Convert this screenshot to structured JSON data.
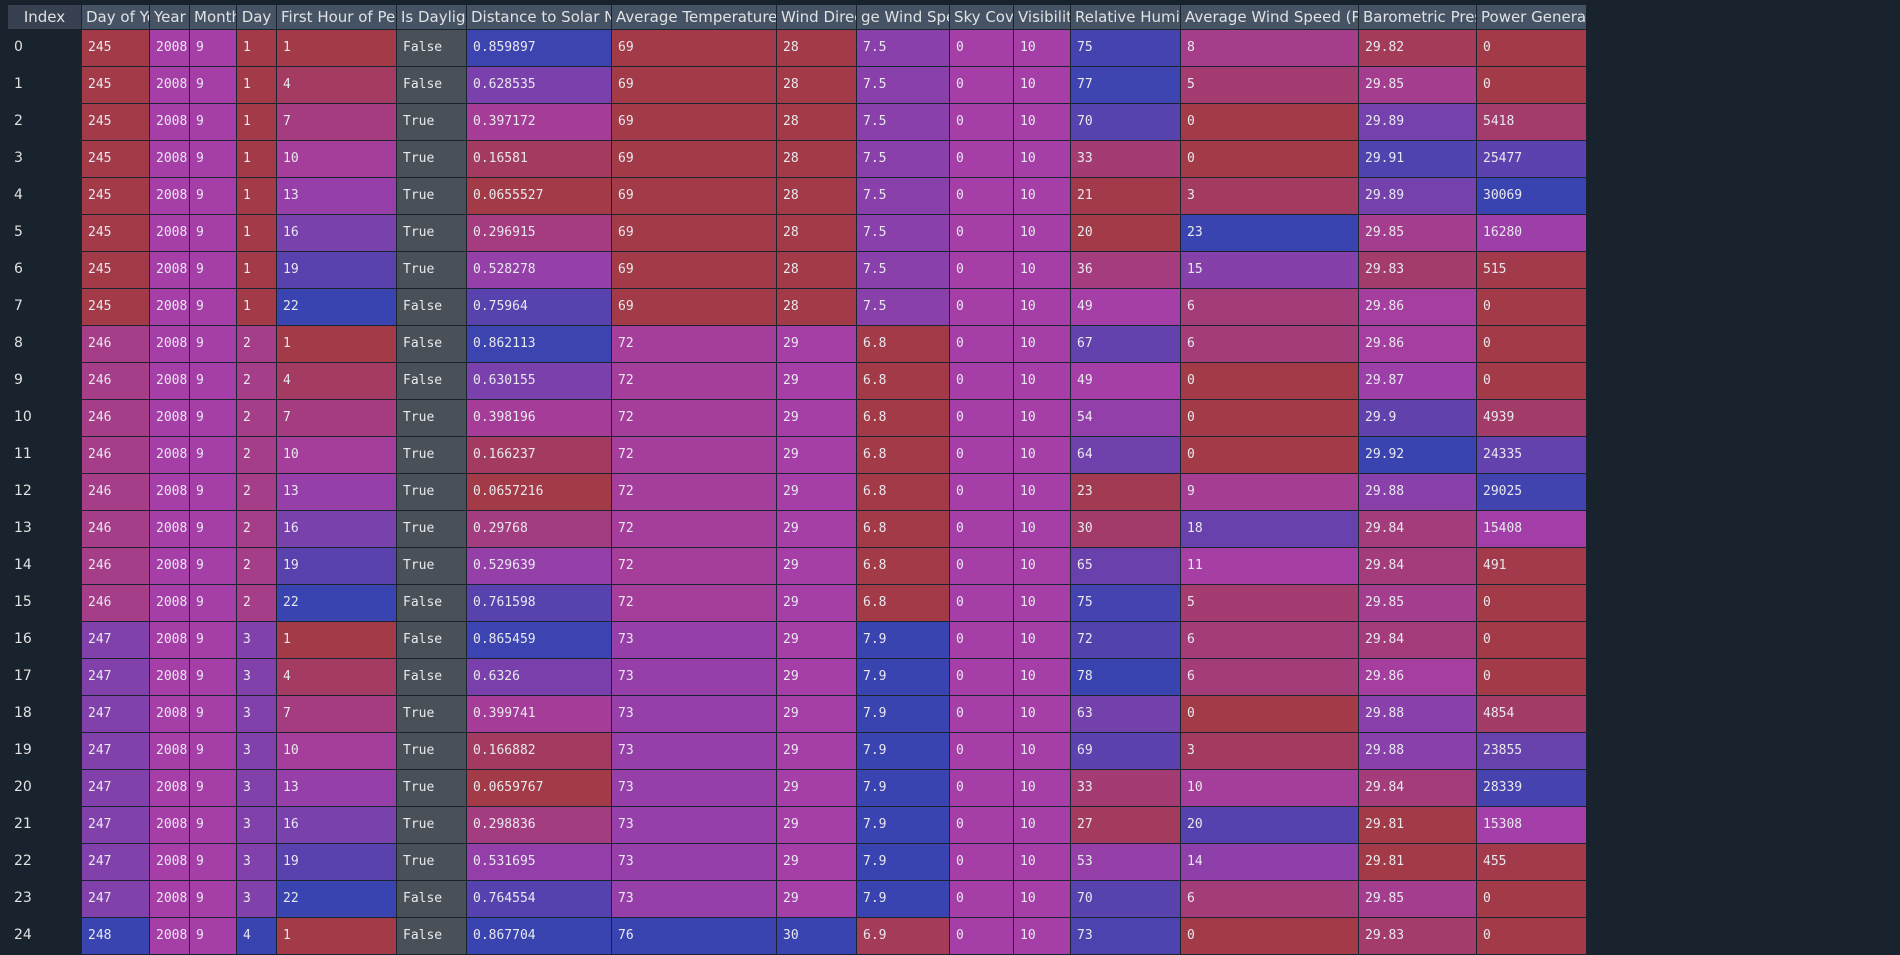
{
  "columns": [
    {
      "label": "Index"
    },
    {
      "label": "Day of Year"
    },
    {
      "label": "Year"
    },
    {
      "label": "Month"
    },
    {
      "label": "Day"
    },
    {
      "label": "First Hour of Period"
    },
    {
      "label": "Is Daylight"
    },
    {
      "label": "Distance to Solar Noon"
    },
    {
      "label": "Average Temperature (Day)"
    },
    {
      "label": "Wind Directi"
    },
    {
      "label": "ge Wind Speed"
    },
    {
      "label": "Sky Cover"
    },
    {
      "label": "Visibility"
    },
    {
      "label": "Relative Humidity"
    },
    {
      "label": "Average Wind Speed (Period)"
    },
    {
      "label": "Barometric Pressure"
    },
    {
      "label": "Power Generated"
    }
  ],
  "rows": [
    [
      "0",
      "245",
      "2008",
      "9",
      "1",
      "1",
      "False",
      "0.859897",
      "69",
      "28",
      "7.5",
      "0",
      "10",
      "75",
      "8",
      "29.82",
      "0"
    ],
    [
      "1",
      "245",
      "2008",
      "9",
      "1",
      "4",
      "False",
      "0.628535",
      "69",
      "28",
      "7.5",
      "0",
      "10",
      "77",
      "5",
      "29.85",
      "0"
    ],
    [
      "2",
      "245",
      "2008",
      "9",
      "1",
      "7",
      "True",
      "0.397172",
      "69",
      "28",
      "7.5",
      "0",
      "10",
      "70",
      "0",
      "29.89",
      "5418"
    ],
    [
      "3",
      "245",
      "2008",
      "9",
      "1",
      "10",
      "True",
      "0.16581",
      "69",
      "28",
      "7.5",
      "0",
      "10",
      "33",
      "0",
      "29.91",
      "25477"
    ],
    [
      "4",
      "245",
      "2008",
      "9",
      "1",
      "13",
      "True",
      "0.0655527",
      "69",
      "28",
      "7.5",
      "0",
      "10",
      "21",
      "3",
      "29.89",
      "30069"
    ],
    [
      "5",
      "245",
      "2008",
      "9",
      "1",
      "16",
      "True",
      "0.296915",
      "69",
      "28",
      "7.5",
      "0",
      "10",
      "20",
      "23",
      "29.85",
      "16280"
    ],
    [
      "6",
      "245",
      "2008",
      "9",
      "1",
      "19",
      "True",
      "0.528278",
      "69",
      "28",
      "7.5",
      "0",
      "10",
      "36",
      "15",
      "29.83",
      "515"
    ],
    [
      "7",
      "245",
      "2008",
      "9",
      "1",
      "22",
      "False",
      "0.75964",
      "69",
      "28",
      "7.5",
      "0",
      "10",
      "49",
      "6",
      "29.86",
      "0"
    ],
    [
      "8",
      "246",
      "2008",
      "9",
      "2",
      "1",
      "False",
      "0.862113",
      "72",
      "29",
      "6.8",
      "0",
      "10",
      "67",
      "6",
      "29.86",
      "0"
    ],
    [
      "9",
      "246",
      "2008",
      "9",
      "2",
      "4",
      "False",
      "0.630155",
      "72",
      "29",
      "6.8",
      "0",
      "10",
      "49",
      "0",
      "29.87",
      "0"
    ],
    [
      "10",
      "246",
      "2008",
      "9",
      "2",
      "7",
      "True",
      "0.398196",
      "72",
      "29",
      "6.8",
      "0",
      "10",
      "54",
      "0",
      "29.9",
      "4939"
    ],
    [
      "11",
      "246",
      "2008",
      "9",
      "2",
      "10",
      "True",
      "0.166237",
      "72",
      "29",
      "6.8",
      "0",
      "10",
      "64",
      "0",
      "29.92",
      "24335"
    ],
    [
      "12",
      "246",
      "2008",
      "9",
      "2",
      "13",
      "True",
      "0.0657216",
      "72",
      "29",
      "6.8",
      "0",
      "10",
      "23",
      "9",
      "29.88",
      "29025"
    ],
    [
      "13",
      "246",
      "2008",
      "9",
      "2",
      "16",
      "True",
      "0.29768",
      "72",
      "29",
      "6.8",
      "0",
      "10",
      "30",
      "18",
      "29.84",
      "15408"
    ],
    [
      "14",
      "246",
      "2008",
      "9",
      "2",
      "19",
      "True",
      "0.529639",
      "72",
      "29",
      "6.8",
      "0",
      "10",
      "65",
      "11",
      "29.84",
      "491"
    ],
    [
      "15",
      "246",
      "2008",
      "9",
      "2",
      "22",
      "False",
      "0.761598",
      "72",
      "29",
      "6.8",
      "0",
      "10",
      "75",
      "5",
      "29.85",
      "0"
    ],
    [
      "16",
      "247",
      "2008",
      "9",
      "3",
      "1",
      "False",
      "0.865459",
      "73",
      "29",
      "7.9",
      "0",
      "10",
      "72",
      "6",
      "29.84",
      "0"
    ],
    [
      "17",
      "247",
      "2008",
      "9",
      "3",
      "4",
      "False",
      "0.6326",
      "73",
      "29",
      "7.9",
      "0",
      "10",
      "78",
      "6",
      "29.86",
      "0"
    ],
    [
      "18",
      "247",
      "2008",
      "9",
      "3",
      "7",
      "True",
      "0.399741",
      "73",
      "29",
      "7.9",
      "0",
      "10",
      "63",
      "0",
      "29.88",
      "4854"
    ],
    [
      "19",
      "247",
      "2008",
      "9",
      "3",
      "10",
      "True",
      "0.166882",
      "73",
      "29",
      "7.9",
      "0",
      "10",
      "69",
      "3",
      "29.88",
      "23855"
    ],
    [
      "20",
      "247",
      "2008",
      "9",
      "3",
      "13",
      "True",
      "0.0659767",
      "73",
      "29",
      "7.9",
      "0",
      "10",
      "33",
      "10",
      "29.84",
      "28339"
    ],
    [
      "21",
      "247",
      "2008",
      "9",
      "3",
      "16",
      "True",
      "0.298836",
      "73",
      "29",
      "7.9",
      "0",
      "10",
      "27",
      "20",
      "29.81",
      "15308"
    ],
    [
      "22",
      "247",
      "2008",
      "9",
      "3",
      "19",
      "True",
      "0.531695",
      "73",
      "29",
      "7.9",
      "0",
      "10",
      "53",
      "14",
      "29.81",
      "455"
    ],
    [
      "23",
      "247",
      "2008",
      "9",
      "3",
      "22",
      "False",
      "0.764554",
      "73",
      "29",
      "7.9",
      "0",
      "10",
      "70",
      "6",
      "29.85",
      "0"
    ],
    [
      "24",
      "248",
      "2008",
      "9",
      "4",
      "1",
      "False",
      "0.867704",
      "76",
      "30",
      "6.9",
      "0",
      "10",
      "73",
      "0",
      "29.83",
      "0"
    ]
  ],
  "colors": {
    "header_bg": "#455364",
    "index_bg": "#19232d",
    "bool_bg": "#4a5058",
    "gradient_low": "#a23a48",
    "gradient_mid": "#a63ea8",
    "gradient_high": "#3a44b0"
  }
}
